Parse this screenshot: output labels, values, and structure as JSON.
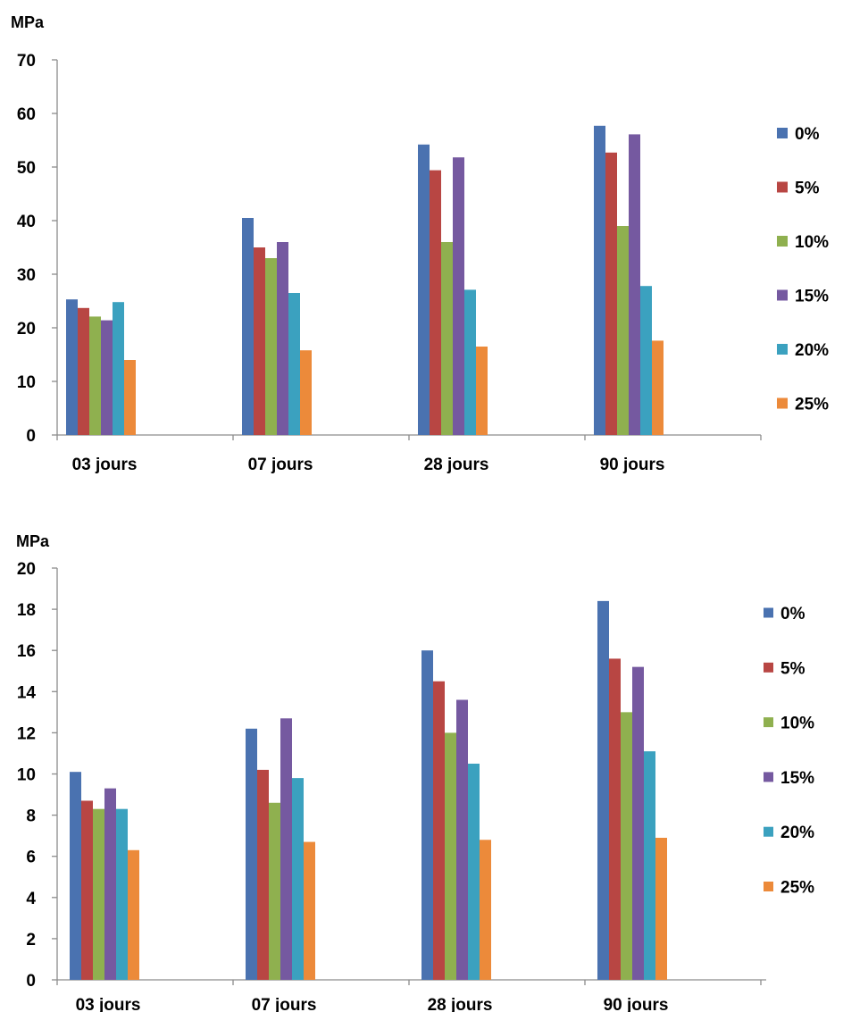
{
  "chart_data": [
    {
      "type": "bar",
      "ylabel": "MPa",
      "ylim": [
        0,
        70
      ],
      "yticks": [
        "0",
        "10",
        "20",
        "30",
        "40",
        "50",
        "60",
        "70"
      ],
      "categories": [
        "03 jours",
        "07 jours",
        "28 jours",
        "90 jours"
      ],
      "series": [
        {
          "name": "0%",
          "color": "#4a72b0",
          "values": [
            25.3,
            40.5,
            54.2,
            57.7
          ]
        },
        {
          "name": "5%",
          "color": "#b84643",
          "values": [
            23.7,
            35.0,
            49.4,
            52.7
          ]
        },
        {
          "name": "10%",
          "color": "#8fb04f",
          "values": [
            22.1,
            33.0,
            36.0,
            39.0
          ]
        },
        {
          "name": "15%",
          "color": "#7559a0",
          "values": [
            21.4,
            36.0,
            51.8,
            56.1
          ]
        },
        {
          "name": "20%",
          "color": "#3ba1bf",
          "values": [
            24.8,
            26.5,
            27.1,
            27.8
          ]
        },
        {
          "name": "25%",
          "color": "#ec8a3a",
          "values": [
            14.0,
            15.8,
            16.5,
            17.6
          ]
        }
      ],
      "grid": false,
      "legend": "right"
    },
    {
      "type": "bar",
      "ylabel": "MPa",
      "ylim": [
        0,
        20
      ],
      "yticks": [
        "0",
        "2",
        "4",
        "6",
        "8",
        "10",
        "12",
        "14",
        "16",
        "18",
        "20"
      ],
      "categories": [
        "03 jours",
        "07 jours",
        "28 jours",
        "90 jours"
      ],
      "series": [
        {
          "name": "0%",
          "color": "#4a72b0",
          "values": [
            10.1,
            12.2,
            16.0,
            18.4
          ]
        },
        {
          "name": "5%",
          "color": "#b84643",
          "values": [
            8.7,
            10.2,
            14.5,
            15.6
          ]
        },
        {
          "name": "10%",
          "color": "#8fb04f",
          "values": [
            8.3,
            8.6,
            12.0,
            13.0
          ]
        },
        {
          "name": "15%",
          "color": "#7559a0",
          "values": [
            9.3,
            12.7,
            13.6,
            15.2
          ]
        },
        {
          "name": "20%",
          "color": "#3ba1bf",
          "values": [
            8.3,
            9.8,
            10.5,
            11.1
          ]
        },
        {
          "name": "25%",
          "color": "#ec8a3a",
          "values": [
            6.3,
            6.7,
            6.8,
            6.9
          ]
        }
      ],
      "grid": false,
      "legend": "right"
    }
  ]
}
